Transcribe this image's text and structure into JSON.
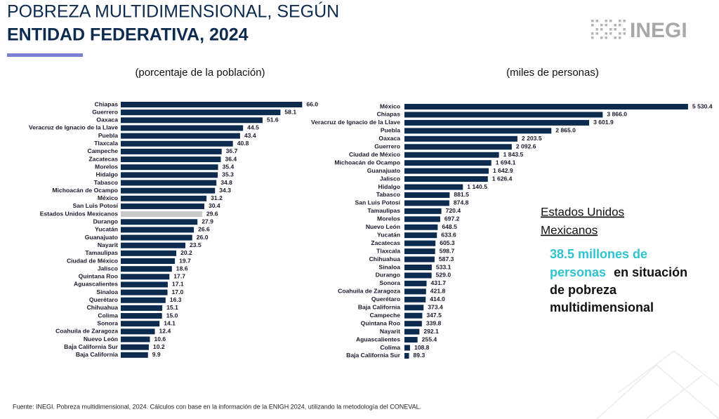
{
  "header": {
    "title_line1": "POBREZA MULTIDIMENSIONAL, SEGÚN",
    "title_line2": "ENTIDAD FEDERATIVA, 2024",
    "logo": "INEGI"
  },
  "chart_data": [
    {
      "type": "bar",
      "orientation": "horizontal",
      "subtitle": "(porcentaje de la población)",
      "categories": [
        "Chiapas",
        "Guerrero",
        "Oaxaca",
        "Veracruz de Ignacio de la Llave",
        "Puebla",
        "Tlaxcala",
        "Campeche",
        "Zacatecas",
        "Morelos",
        "Hidalgo",
        "Tabasco",
        "Michoacán de Ocampo",
        "México",
        "San Luis Potosí",
        "Estados Unidos Mexicanos",
        "Durango",
        "Yucatán",
        "Guanajuato",
        "Nayarit",
        "Tamaulipas",
        "Ciudad de México",
        "Jalisco",
        "Quintana Roo",
        "Aguascalientes",
        "Sinaloa",
        "Querétaro",
        "Chihuahua",
        "Colima",
        "Sonora",
        "Coahuila de Zaragoza",
        "Nuevo León",
        "Baja California Sur",
        "Baja California"
      ],
      "values": [
        66.0,
        58.1,
        51.6,
        44.5,
        43.4,
        40.8,
        36.7,
        36.4,
        35.4,
        35.3,
        34.8,
        34.3,
        31.2,
        30.4,
        29.6,
        27.9,
        26.6,
        26.0,
        23.5,
        20.2,
        19.7,
        18.6,
        17.7,
        17.1,
        17.0,
        16.3,
        15.1,
        15.0,
        14.1,
        12.4,
        10.6,
        10.2,
        9.9
      ],
      "value_labels": [
        "66.0",
        "58.1",
        "51.6",
        "44.5",
        "43.4",
        "40.8",
        "36.7",
        "36.4",
        "35.4",
        "35.3",
        "34.8",
        "34.3",
        "31.2",
        "30.4",
        "29.6",
        "27.9",
        "26.6",
        "26.0",
        "23.5",
        "20.2",
        "19.7",
        "18.6",
        "17.7",
        "17.1",
        "17.0",
        "16.3",
        "15.1",
        "15.0",
        "14.1",
        "12.4",
        "10.6",
        "10.2",
        "9.9"
      ],
      "colors": [
        "#0d2a4f",
        "#0d2a4f",
        "#0d2a4f",
        "#0d2a4f",
        "#0d2a4f",
        "#0d2a4f",
        "#0d2a4f",
        "#0d2a4f",
        "#0d2a4f",
        "#0d2a4f",
        "#0d2a4f",
        "#0d2a4f",
        "#0d2a4f",
        "#0d2a4f",
        "#c9c9c9",
        "#0d2a4f",
        "#0d2a4f",
        "#0d2a4f",
        "#0d2a4f",
        "#0d2a4f",
        "#0d2a4f",
        "#0d2a4f",
        "#0d2a4f",
        "#0d2a4f",
        "#0d2a4f",
        "#0d2a4f",
        "#0d2a4f",
        "#0d2a4f",
        "#0d2a4f",
        "#0d2a4f",
        "#0d2a4f",
        "#0d2a4f",
        "#0d2a4f"
      ],
      "xlim": [
        0,
        70
      ]
    },
    {
      "type": "bar",
      "orientation": "horizontal",
      "subtitle": "(miles de personas)",
      "categories": [
        "México",
        "Chiapas",
        "Veracruz de Ignacio de la Llave",
        "Puebla",
        "Oaxaca",
        "Guerrero",
        "Ciudad de México",
        "Michoacán de Ocampo",
        "Guanajuato",
        "Jalisco",
        "Hidalgo",
        "Tabasco",
        "San Luis Potosí",
        "Tamaulipas",
        "Morelos",
        "Nuevo León",
        "Yucatán",
        "Zacatecas",
        "Tlaxcala",
        "Chihuahua",
        "Sinaloa",
        "Durango",
        "Sonora",
        "Coahuila de Zaragoza",
        "Querétaro",
        "Baja California",
        "Campeche",
        "Quintana Roo",
        "Nayarit",
        "Aguascalientes",
        "Colima",
        "Baja California Sur"
      ],
      "values": [
        5530.4,
        3866.0,
        3601.9,
        2865.0,
        2203.5,
        2092.6,
        1843.5,
        1694.1,
        1642.9,
        1626.4,
        1140.5,
        881.5,
        874.8,
        720.4,
        697.2,
        648.5,
        633.6,
        605.3,
        598.7,
        587.3,
        533.1,
        529.0,
        431.7,
        421.8,
        414.0,
        373.4,
        347.5,
        339.8,
        292.1,
        255.4,
        108.8,
        89.3
      ],
      "value_labels": [
        "5 530.4",
        "3 866.0",
        "3 601.9",
        "2 865.0",
        "2 203.5",
        "2 092.6",
        "1 843.5",
        "1 694.1",
        "1 642.9",
        "1 626.4",
        "1 140.5",
        "881.5",
        "874.8",
        "720.4",
        "697.2",
        "648.5",
        "633.6",
        "605.3",
        "598.7",
        "587.3",
        "533.1",
        "529.0",
        "431.7",
        "421.8",
        "414.0",
        "373.4",
        "347.5",
        "339.8",
        "292.1",
        "255.4",
        "108.8",
        "89.3"
      ],
      "color": "#0d2a4f",
      "xlim": [
        0,
        5600
      ]
    }
  ],
  "callout": {
    "heading_line1": "Estados Unidos",
    "heading_line2": "Mexicanos",
    "highlight_line1": "38.5 millones de",
    "highlight_line2": "personas",
    "text_line2": "en situación",
    "text_line3": "de pobreza",
    "text_line4": "multidimensional"
  },
  "footer": {
    "source": "Fuente: INEGI. Pobreza multidimensional, 2024. Cálculos con base en la información de la ENIGH 2024, utilizando la metodología del CONEVAL."
  }
}
